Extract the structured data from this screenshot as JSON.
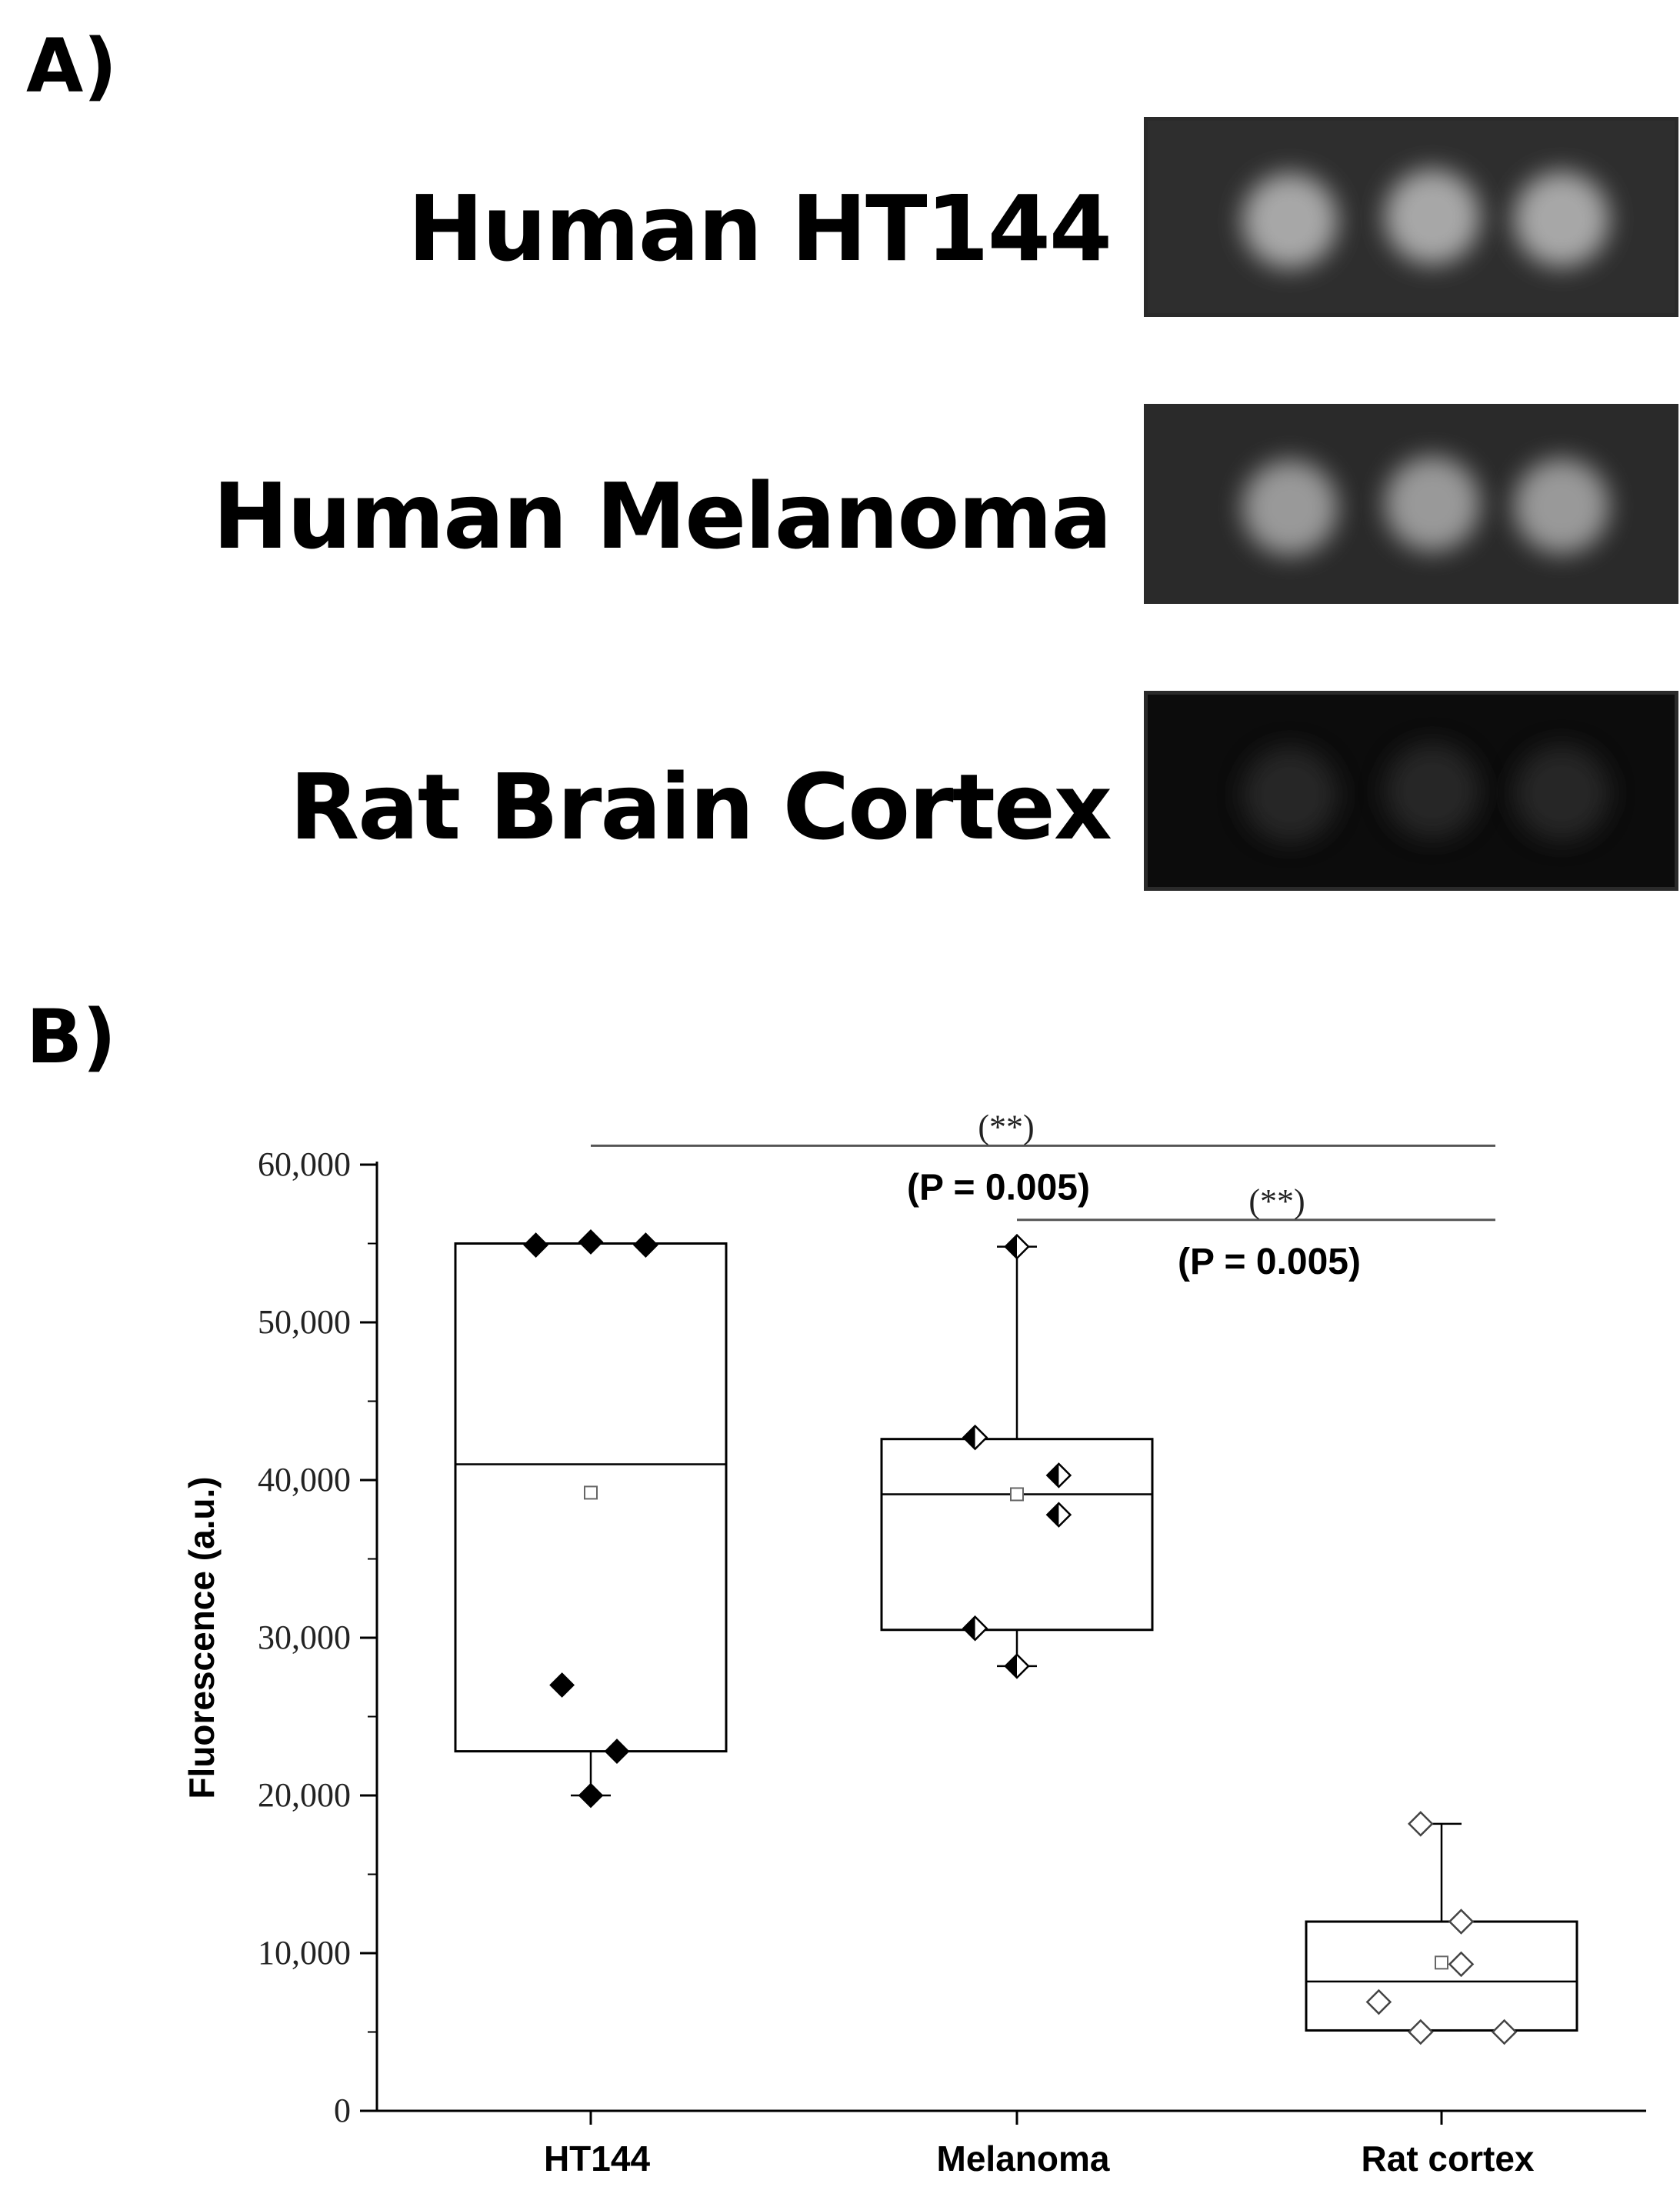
{
  "panel_a": {
    "label": "A)",
    "strips": [
      {
        "name": "Human HT144",
        "background": "#2e2e2e",
        "spot_color": "#bdbdbd",
        "spot_opacity": 0.85
      },
      {
        "name": "Human Melanoma",
        "background": "#2a2a2a",
        "spot_color": "#b5b5b5",
        "spot_opacity": 0.8
      },
      {
        "name": "Rat Brain Cortex",
        "background": "#0c0c0c",
        "spot_color": "#303030",
        "spot_opacity": 0.7
      }
    ]
  },
  "panel_b": {
    "label": "B)"
  },
  "chart_data": {
    "type": "box",
    "ylabel": "Fluorescence (a.u.)",
    "ylim": [
      0,
      60000
    ],
    "yticks": [
      0,
      10000,
      20000,
      30000,
      40000,
      50000,
      60000
    ],
    "ytick_labels": [
      "0",
      "10,000",
      "20,000",
      "30,000",
      "40,000",
      "50,000",
      "60,000"
    ],
    "categories": [
      "HT144",
      "Melanoma",
      "Rat cortex"
    ],
    "boxes": [
      {
        "category": "HT144",
        "q1": 22800,
        "median": 41000,
        "q3": 55000,
        "mean": 39200,
        "whisker_low": 20000,
        "whisker_high": 55000,
        "points": [
          {
            "dx": -0.42,
            "y": 54900
          },
          {
            "dx": 0.0,
            "y": 55100
          },
          {
            "dx": 0.42,
            "y": 54900
          },
          {
            "dx": -0.22,
            "y": 27000
          },
          {
            "dx": 0.2,
            "y": 22800
          },
          {
            "dx": 0.0,
            "y": 20000
          }
        ],
        "marker": "filled-diamond"
      },
      {
        "category": "Melanoma",
        "q1": 30500,
        "median": 39100,
        "q3": 42600,
        "mean": 39100,
        "whisker_low": 28200,
        "whisker_high": 54800,
        "points": [
          {
            "dx": 0.0,
            "y": 54800
          },
          {
            "dx": -0.32,
            "y": 42700
          },
          {
            "dx": 0.32,
            "y": 40300
          },
          {
            "dx": 0.32,
            "y": 37800
          },
          {
            "dx": -0.32,
            "y": 30600
          },
          {
            "dx": 0.0,
            "y": 28200
          }
        ],
        "marker": "half-diamond"
      },
      {
        "category": "Rat cortex",
        "q1": 5100,
        "median": 8200,
        "q3": 12000,
        "mean": 9400,
        "whisker_low": 5100,
        "whisker_high": 18200,
        "points": [
          {
            "dx": -0.16,
            "y": 18200
          },
          {
            "dx": 0.15,
            "y": 12000
          },
          {
            "dx": 0.15,
            "y": 9300
          },
          {
            "dx": -0.48,
            "y": 6900
          },
          {
            "dx": -0.16,
            "y": 5000
          },
          {
            "dx": 0.48,
            "y": 5000
          }
        ],
        "marker": "open-diamond"
      }
    ],
    "significance": [
      {
        "from": "HT144",
        "to": "Rat cortex",
        "y": 61200,
        "stars": "(**)",
        "p_label": "(P = 0.005)"
      },
      {
        "from": "Melanoma",
        "to": "Rat cortex",
        "y": 56500,
        "stars": "(**)",
        "p_label": "(P = 0.005)"
      }
    ]
  }
}
